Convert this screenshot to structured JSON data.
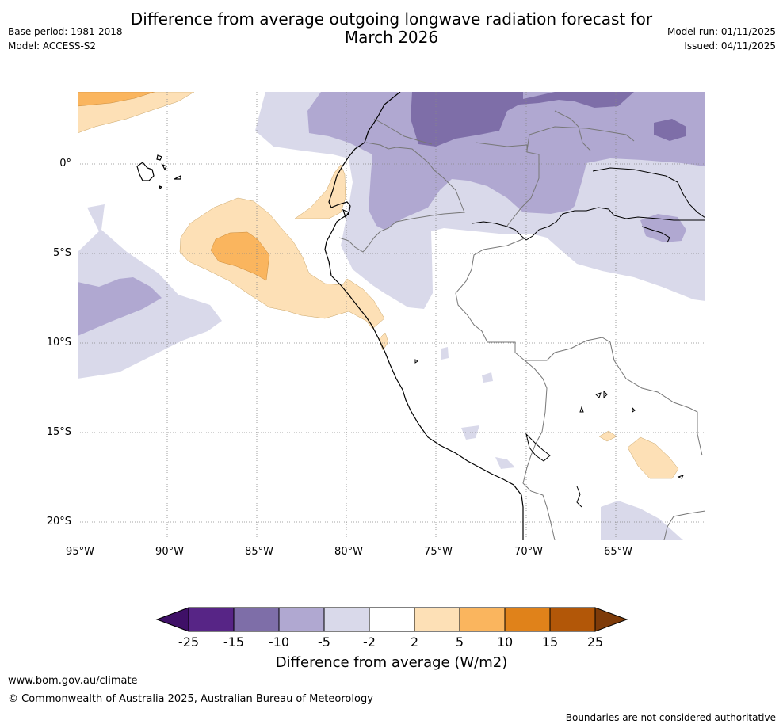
{
  "header": {
    "title_line1": "Difference from average outgoing longwave radiation forecast for",
    "title_line2": "March 2026",
    "base_period": "Base period: 1981-2018",
    "model": "Model: ACCESS-S2",
    "model_run": "Model run: 01/11/2025",
    "issued": "Issued: 04/11/2025"
  },
  "map": {
    "x_ticks": [
      "95°W",
      "90°W",
      "85°W",
      "80°W",
      "75°W",
      "70°W",
      "65°W"
    ],
    "y_ticks": [
      "0°",
      "5°S",
      "10°S",
      "15°S",
      "20°S"
    ],
    "lon_range": [
      -95,
      -60
    ],
    "lat_range": [
      -21,
      4
    ]
  },
  "legend": {
    "label": "Difference from average (W/m2)",
    "ticks": [
      "-25",
      "-15",
      "-10",
      "-5",
      "-2",
      "2",
      "5",
      "10",
      "15",
      "25"
    ],
    "colors": [
      "#3f1067",
      "#572586",
      "#7e6ea8",
      "#b0a8d1",
      "#d9d9ea",
      "#ffffff",
      "#fde0b6",
      "#fab55e",
      "#e0821a",
      "#b25708",
      "#7e3b09"
    ]
  },
  "footer": {
    "website": "www.bom.gov.au/climate",
    "copyright": "© Commonwealth of Australia 2025, Australian Bureau of Meteorology",
    "disclaimer": "Boundaries are not considered authoritative"
  }
}
